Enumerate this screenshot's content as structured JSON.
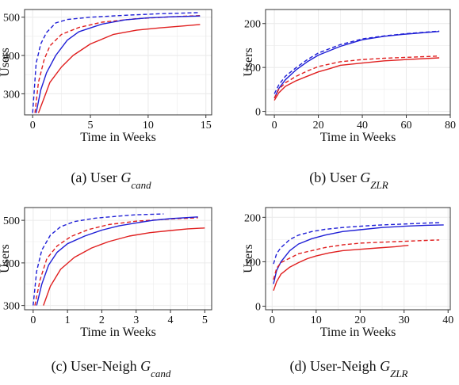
{
  "figure": {
    "caption_prefix": [
      "(a) User",
      "(b) User",
      "(c) User-Neigh",
      "(d) User-Neigh"
    ],
    "caption_symbol": [
      "G",
      "G",
      "G",
      "G"
    ],
    "caption_subscript": [
      "cand",
      "ZLR",
      "cand",
      "ZLR"
    ]
  },
  "colors": {
    "series_blue": "#1f1fd6",
    "series_red": "#e01f1f",
    "grid": "#ebebeb",
    "frame": "#333333"
  },
  "chart_data": [
    {
      "type": "line",
      "xlabel": "Time in Weeks",
      "ylabel": "Users",
      "xlim": [
        -0.7,
        15.5
      ],
      "ylim": [
        245,
        520
      ],
      "xticks": [
        0,
        5,
        10,
        15
      ],
      "yticks": [
        300,
        400,
        500
      ],
      "grid": true,
      "series": [
        {
          "color": "blue",
          "dash": true,
          "x": [
            0,
            0.3,
            0.7,
            1.2,
            2,
            3,
            5,
            8,
            11,
            14.5
          ],
          "y": [
            250,
            380,
            430,
            460,
            485,
            494,
            500,
            505,
            509,
            512
          ]
        },
        {
          "color": "red",
          "dash": true,
          "x": [
            0.2,
            0.5,
            1,
            1.5,
            2.5,
            4,
            6,
            9,
            12,
            14.5
          ],
          "y": [
            250,
            330,
            390,
            425,
            455,
            473,
            487,
            496,
            501,
            504
          ]
        },
        {
          "color": "blue",
          "dash": false,
          "x": [
            0.3,
            0.7,
            1.2,
            2,
            3,
            4,
            6,
            8,
            10,
            12,
            14.5
          ],
          "y": [
            250,
            310,
            355,
            400,
            440,
            462,
            482,
            493,
            498,
            501,
            503
          ]
        },
        {
          "color": "red",
          "dash": false,
          "x": [
            0.5,
            1,
            1.5,
            2.5,
            3.5,
            5,
            7,
            9,
            11,
            13,
            14.5
          ],
          "y": [
            250,
            290,
            330,
            370,
            400,
            430,
            455,
            466,
            472,
            477,
            481
          ]
        }
      ]
    },
    {
      "type": "line",
      "xlabel": "Time in Weeks",
      "ylabel": "Users",
      "xlim": [
        -4,
        80
      ],
      "ylim": [
        -8,
        232
      ],
      "xticks": [
        0,
        20,
        40,
        60,
        80
      ],
      "yticks": [
        0,
        100,
        200
      ],
      "grid": true,
      "series": [
        {
          "color": "blue",
          "dash": true,
          "x": [
            0,
            2,
            5,
            10,
            15,
            20,
            30,
            40,
            50,
            60,
            70,
            75
          ],
          "y": [
            40,
            60,
            80,
            100,
            118,
            133,
            152,
            165,
            172,
            177,
            181,
            183
          ]
        },
        {
          "color": "blue",
          "dash": false,
          "x": [
            0,
            2,
            5,
            10,
            15,
            20,
            30,
            40,
            50,
            60,
            70,
            75
          ],
          "y": [
            30,
            52,
            72,
            95,
            113,
            128,
            148,
            163,
            171,
            176,
            180,
            182
          ]
        },
        {
          "color": "red",
          "dash": true,
          "x": [
            0,
            2,
            5,
            10,
            15,
            20,
            30,
            40,
            50,
            60,
            70,
            75
          ],
          "y": [
            30,
            50,
            65,
            80,
            92,
            102,
            113,
            118,
            121,
            123,
            125,
            126
          ]
        },
        {
          "color": "red",
          "dash": false,
          "x": [
            0,
            2,
            5,
            10,
            15,
            20,
            25,
            30,
            40,
            50,
            60,
            75
          ],
          "y": [
            25,
            42,
            57,
            70,
            80,
            90,
            97,
            105,
            110,
            115,
            118,
            122
          ]
        }
      ]
    },
    {
      "type": "line",
      "xlabel": "Time in Weeks",
      "ylabel": "Users",
      "xlim": [
        -0.25,
        5.2
      ],
      "ylim": [
        290,
        530
      ],
      "xticks": [
        0,
        1,
        2,
        3,
        4,
        5
      ],
      "yticks": [
        300,
        400,
        500
      ],
      "grid": true,
      "series": [
        {
          "color": "blue",
          "dash": true,
          "x": [
            0,
            0.1,
            0.25,
            0.5,
            0.8,
            1.2,
            1.8,
            2.5,
            3,
            3.8
          ],
          "y": [
            300,
            380,
            430,
            465,
            485,
            497,
            505,
            510,
            513,
            515
          ]
        },
        {
          "color": "red",
          "dash": true,
          "x": [
            0.05,
            0.2,
            0.4,
            0.7,
            1.1,
            1.6,
            2.2,
            3,
            4,
            4.8
          ],
          "y": [
            300,
            360,
            410,
            440,
            462,
            478,
            490,
            498,
            503,
            506
          ]
        },
        {
          "color": "blue",
          "dash": false,
          "x": [
            0.1,
            0.25,
            0.45,
            0.7,
            1,
            1.5,
            2,
            2.5,
            3,
            3.5,
            4,
            4.8
          ],
          "y": [
            300,
            350,
            395,
            425,
            445,
            463,
            477,
            487,
            494,
            500,
            504,
            508
          ]
        },
        {
          "color": "red",
          "dash": false,
          "x": [
            0.3,
            0.5,
            0.8,
            1.2,
            1.7,
            2.2,
            2.8,
            3.4,
            4,
            4.5,
            5
          ],
          "y": [
            300,
            345,
            385,
            413,
            435,
            450,
            463,
            471,
            476,
            480,
            482
          ]
        }
      ]
    },
    {
      "type": "line",
      "xlabel": "Time in Weeks",
      "ylabel": "Users",
      "xlim": [
        -1.5,
        40.5
      ],
      "ylim": [
        -8,
        222
      ],
      "xticks": [
        0,
        10,
        20,
        30,
        40
      ],
      "yticks": [
        0,
        100,
        200
      ],
      "grid": true,
      "series": [
        {
          "color": "blue",
          "dash": true,
          "x": [
            0.3,
            1,
            2,
            4,
            6,
            9,
            12,
            16,
            20,
            25,
            30,
            35,
            38
          ],
          "y": [
            95,
            118,
            132,
            150,
            160,
            168,
            173,
            177,
            180,
            183,
            185,
            187,
            188
          ]
        },
        {
          "color": "blue",
          "dash": false,
          "x": [
            0.3,
            1,
            2,
            4,
            6,
            9,
            12,
            16,
            20,
            25,
            30,
            35,
            39
          ],
          "y": [
            50,
            80,
            100,
            125,
            140,
            152,
            160,
            168,
            172,
            177,
            180,
            182,
            183
          ]
        },
        {
          "color": "red",
          "dash": true,
          "x": [
            0.3,
            1,
            2,
            4,
            6,
            9,
            12,
            16,
            20,
            25,
            30,
            35,
            38
          ],
          "y": [
            60,
            85,
            98,
            108,
            118,
            125,
            132,
            138,
            142,
            144,
            146,
            148,
            149
          ]
        },
        {
          "color": "red",
          "dash": false,
          "x": [
            0.3,
            1,
            2,
            4,
            6,
            8,
            10,
            13,
            16,
            20,
            24,
            28,
            31
          ],
          "y": [
            35,
            55,
            72,
            88,
            98,
            107,
            113,
            120,
            125,
            128,
            131,
            134,
            137
          ]
        }
      ]
    }
  ]
}
